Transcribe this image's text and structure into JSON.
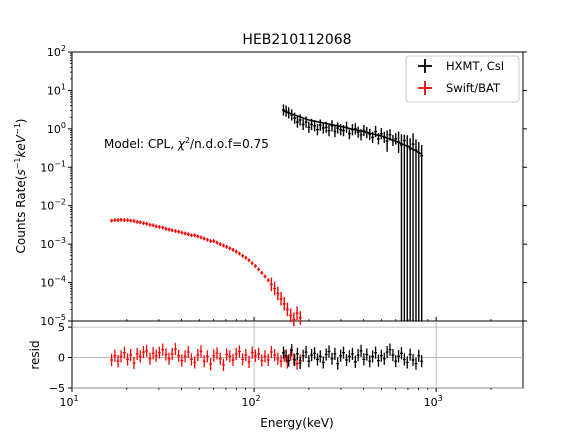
{
  "chart_data": {
    "type": "scatter",
    "title": "HEB210112068",
    "xlabel": "Energy(keV)",
    "ylabel_prefix": "Counts Rate(",
    "ylabel_unit_a": "s",
    "ylabel_unit_b": "keV",
    "ylabel_exp": "−1",
    "ylabel_suffix": ")",
    "resid_label": "resid",
    "x_scale": "log",
    "y_scale": "log",
    "xlim": [
      10,
      3000
    ],
    "ylim": [
      1e-05,
      100
    ],
    "resid_ylim": [
      -5,
      6
    ],
    "annotation": {
      "prefix": "Model: CPL, ",
      "chi": "χ",
      "sup": "2",
      "suffix": "/n.d.o.f=0.75"
    },
    "legend": {
      "placement": "top-right",
      "entries": [
        {
          "name": "HXMT, CsI",
          "color": "#000000"
        },
        {
          "name": "Swift/BAT",
          "color": "#ff0000"
        }
      ]
    },
    "ticks": {
      "x_base": "10",
      "x_exps": [
        "1",
        "2",
        "3"
      ],
      "x_values": [
        10,
        100,
        1000
      ],
      "y_base": "10",
      "y_exps": [
        "2",
        "1",
        "0",
        "−1",
        "−2",
        "−3",
        "−4",
        "−5"
      ],
      "y_values": [
        100,
        10,
        1,
        0.1,
        0.01,
        0.001,
        0.0001,
        1e-05
      ],
      "resid_labels": [
        "5",
        "0",
        "−5"
      ],
      "resid_values": [
        5,
        0,
        -5
      ]
    },
    "series": [
      {
        "name": "Swift/BAT",
        "color": "#ff0000",
        "x": [
          16.5,
          17.2,
          17.9,
          18.6,
          19.4,
          20.2,
          21.0,
          21.9,
          22.8,
          23.7,
          24.7,
          25.7,
          26.8,
          27.9,
          29.0,
          30.2,
          31.5,
          32.8,
          34.1,
          35.5,
          37.0,
          38.5,
          40.1,
          41.8,
          43.5,
          45.3,
          47.2,
          49.1,
          51.1,
          53.2,
          55.4,
          57.7,
          60.1,
          62.6,
          65.2,
          67.9,
          70.7,
          73.6,
          76.6,
          79.8,
          83.1,
          86.5,
          90.1,
          93.8,
          97.7,
          101.7,
          105.9,
          110.3,
          114.8,
          119.6,
          124.5,
          129.7,
          135.1,
          140.7,
          146.5,
          152.5,
          158.8,
          165.4,
          172.2,
          179.4
        ],
        "y": [
          0.0041,
          0.0042,
          0.0042,
          0.0043,
          0.0042,
          0.0042,
          0.0041,
          0.004,
          0.0038,
          0.0037,
          0.0035,
          0.0034,
          0.0032,
          0.0031,
          0.0029,
          0.0028,
          0.0027,
          0.0025,
          0.0024,
          0.0023,
          0.0022,
          0.0021,
          0.002,
          0.0019,
          0.0018,
          0.0017,
          0.0017,
          0.0016,
          0.0015,
          0.0014,
          0.0013,
          0.0012,
          0.0012,
          0.0011,
          0.001,
          0.00092,
          0.00085,
          0.00078,
          0.00071,
          0.00064,
          0.00057,
          0.0005,
          0.00044,
          0.00038,
          0.00032,
          0.00027,
          0.00022,
          0.00018,
          0.000145,
          0.000115,
          9e-05,
          7e-05,
          5.2e-05,
          3.8e-05,
          2.8e-05,
          2e-05,
          1.4e-05,
          1.1e-05,
          1.6e-05,
          1.2e-05
        ],
        "resid": [
          -0.4,
          0.3,
          -0.6,
          0.2,
          0.8,
          -0.3,
          0.4,
          -0.9,
          0.6,
          0.2,
          0.9,
          1.1,
          -0.2,
          0.7,
          0.3,
          0.8,
          1.3,
          0.5,
          -0.2,
          0.6,
          1.4,
          0.3,
          -0.5,
          0.2,
          0.9,
          -0.3,
          -0.8,
          0.4,
          1.0,
          -0.6,
          0.2,
          -1.1,
          0.3,
          0.7,
          -0.2,
          -1.2,
          0.5,
          0.2,
          -0.4,
          0.6,
          1.0,
          -0.3,
          0.4,
          -0.7,
          0.8,
          0.3,
          0.6,
          -0.5,
          0.2,
          -0.4,
          0.9,
          0.4,
          -0.2,
          -0.6,
          0.3,
          -0.8,
          0.5,
          -0.3,
          -1.0,
          -0.5
        ]
      },
      {
        "name": "HXMT, CsI",
        "color": "#000000",
        "x": [
          145,
          150,
          155,
          161,
          167,
          173,
          179,
          186,
          193,
          200,
          207,
          215,
          223,
          231,
          240,
          249,
          258,
          268,
          278,
          288,
          299,
          310,
          322,
          334,
          347,
          360,
          373,
          387,
          401,
          416,
          432,
          448,
          465,
          482,
          500,
          519,
          538,
          558,
          579,
          600,
          622,
          645,
          669,
          694,
          720,
          747,
          775,
          803,
          833
        ],
        "y": [
          3.1,
          2.9,
          2.6,
          2.3,
          1.9,
          1.5,
          1.7,
          1.3,
          1.5,
          1.1,
          1.3,
          1.2,
          0.95,
          1.25,
          1.05,
          1.1,
          0.9,
          1.2,
          0.85,
          1.05,
          0.95,
          0.9,
          1.1,
          0.75,
          0.95,
          1.0,
          0.82,
          0.7,
          0.9,
          0.8,
          0.72,
          0.6,
          0.85,
          0.55,
          0.75,
          0.6,
          0.48,
          0.7,
          0.5,
          0.55,
          0.45,
          0.38,
          0.5,
          0.36,
          0.3,
          0.4,
          0.28,
          0.24,
          0.2
        ],
        "resid": [
          0.8,
          0.3,
          -0.5,
          1.2,
          -0.4,
          0.6,
          -0.9,
          0.3,
          0.9,
          -0.6,
          0.4,
          0.7,
          -0.3,
          0.2,
          -0.8,
          0.5,
          1.0,
          -0.2,
          0.6,
          -1.0,
          0.3,
          0.8,
          -0.4,
          0.2,
          0.6,
          -0.7,
          0.4,
          1.1,
          -0.3,
          0.5,
          -0.6,
          0.2,
          0.8,
          -0.5,
          0.3,
          -0.2,
          0.9,
          1.3,
          0.4,
          -0.6,
          0.2,
          0.7,
          -0.3,
          -0.8,
          0.5,
          -0.4,
          -1.0,
          0.3,
          -0.6
        ]
      }
    ],
    "model_line": {
      "x": [
        145,
        200,
        300,
        400,
        500,
        600,
        700,
        833
      ],
      "y": [
        2.9,
        1.7,
        1.15,
        0.85,
        0.65,
        0.48,
        0.35,
        0.22
      ]
    }
  }
}
